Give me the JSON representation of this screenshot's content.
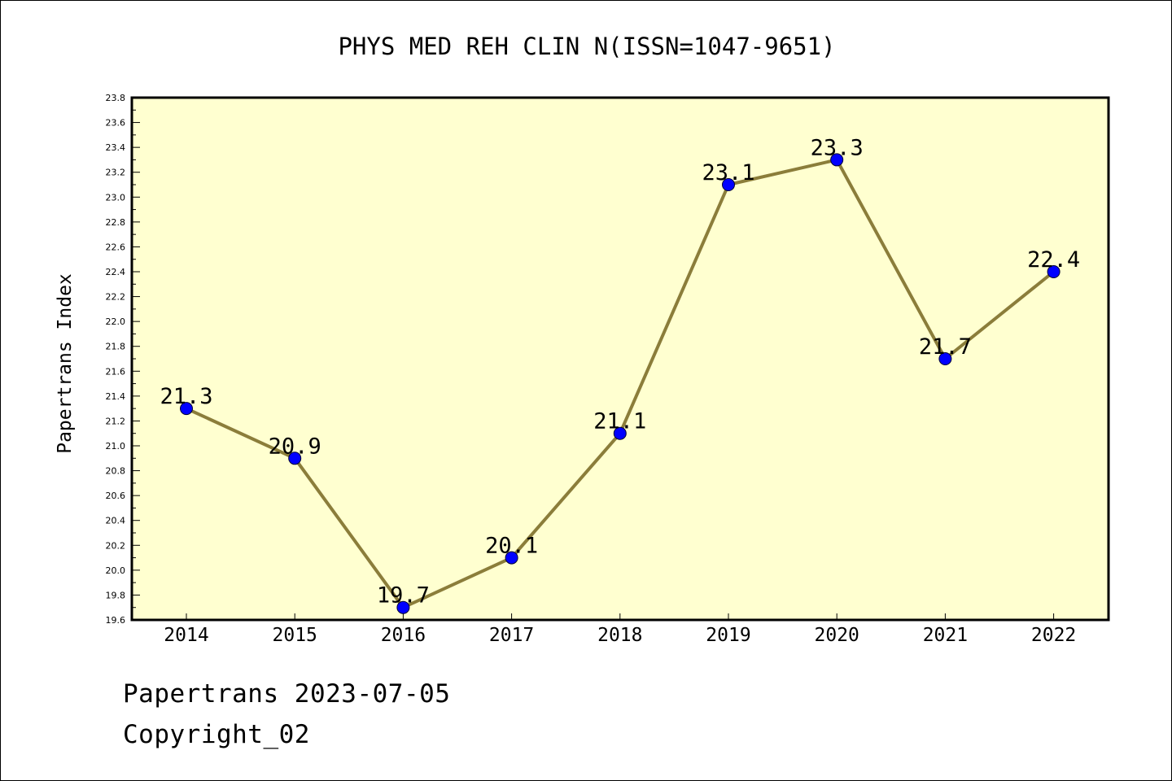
{
  "chart_data": {
    "type": "line",
    "title": "PHYS MED REH CLIN N(ISSN=1047-9651)",
    "ylabel": "Papertrans Index",
    "xlabel": "",
    "categories": [
      "2014",
      "2015",
      "2016",
      "2017",
      "2018",
      "2019",
      "2020",
      "2021",
      "2022"
    ],
    "values": [
      21.3,
      20.9,
      19.7,
      20.1,
      21.1,
      23.1,
      23.3,
      21.7,
      22.4
    ],
    "data_labels": [
      "21.3",
      "20.9",
      "19.7",
      "20.1",
      "21.1",
      "23.1",
      "23.3",
      "21.7",
      "22.4"
    ],
    "ylim": [
      19.6,
      23.8
    ],
    "yticks": [
      "19.6",
      "19.8",
      "20.0",
      "20.2",
      "20.4",
      "20.6",
      "20.8",
      "21.0",
      "21.2",
      "21.4",
      "21.6",
      "21.8",
      "22.0",
      "22.2",
      "22.4",
      "22.6",
      "22.8",
      "23.0",
      "23.2",
      "23.4",
      "23.6",
      "23.8"
    ],
    "grid": false,
    "legend": "none",
    "colors": {
      "plot_background": "#ffffd0",
      "line": "#8b7d3a",
      "marker": "#0000ff"
    }
  },
  "footer": {
    "line1": "Papertrans 2023-07-05",
    "line2": "Copyright_02"
  }
}
